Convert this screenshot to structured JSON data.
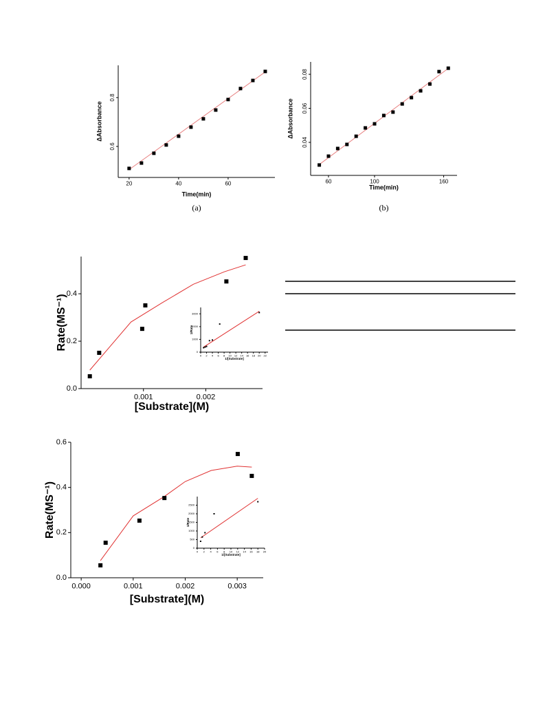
{
  "chart_data": [
    {
      "type": "scatter",
      "x_label": "Time(min)",
      "y_label": "ΔAbsorbance",
      "caption": "(a)",
      "color": "#000000",
      "x": [
        20,
        25,
        30,
        35,
        40,
        45,
        50,
        55,
        60,
        65,
        70,
        75
      ],
      "values": [
        0.51,
        0.532,
        0.572,
        0.606,
        0.642,
        0.679,
        0.713,
        0.749,
        0.792,
        0.837,
        0.87,
        0.907
      ],
      "fit": {
        "x": [
          20,
          75
        ],
        "values": [
          0.505,
          0.905
        ],
        "color": "#e88080"
      },
      "xlim": [
        15.6,
        78.9
      ],
      "xticks": [
        20,
        40,
        60
      ],
      "ylim": [
        0.473,
        0.932
      ],
      "yticks": [
        0.6,
        0.8
      ]
    },
    {
      "type": "scatter",
      "x_label": "Time(min)",
      "y_label": "ΔAbsorbance",
      "caption": "(b)",
      "color": "#000000",
      "x": [
        52,
        60,
        68,
        76,
        84,
        92,
        100,
        108,
        116,
        124,
        132,
        140,
        148,
        156,
        164
      ],
      "values": [
        0.0267,
        0.0319,
        0.0364,
        0.0388,
        0.0436,
        0.0485,
        0.0509,
        0.0558,
        0.0578,
        0.0626,
        0.0663,
        0.0703,
        0.0743,
        0.0816,
        0.0836
      ],
      "fit": {
        "x": [
          52,
          164
        ],
        "values": [
          0.027,
          0.0835
        ],
        "color": "#e88080"
      },
      "xlim": [
        44.5,
        171.6
      ],
      "xticks": [
        60,
        100,
        160
      ],
      "ylim": [
        0.0206,
        0.0873
      ],
      "yticks": [
        0.04,
        0.06,
        0.08
      ]
    },
    {
      "type": "scatter",
      "x_label": "[Substrate](M)",
      "y_label": "Rate(MS⁻¹)",
      "color": "#000000",
      "x": [
        0.00014,
        0.00029,
        0.00098,
        0.00103,
        0.00233,
        0.00264
      ],
      "values": [
        0.052,
        0.151,
        0.252,
        0.351,
        0.452,
        0.551
      ],
      "fit": {
        "x": [
          0.00014,
          0.0008,
          0.0013,
          0.0018,
          0.0023,
          0.00264
        ],
        "values": [
          0.078,
          0.281,
          0.362,
          0.44,
          0.493,
          0.522
        ],
        "color": "#e03030"
      },
      "xlim": [
        0,
        0.00291
      ],
      "xticks": [
        0.001,
        0.002
      ],
      "ylim": [
        0,
        0.557
      ],
      "yticks": [
        {
          "value": 0,
          "label": "0.0"
        },
        0.2,
        0.4
      ],
      "inset": {
        "type": "scatter",
        "x_label": "1/[Substrate]",
        "y_label": "1/Rate",
        "color": "#000000",
        "x": [
          1,
          1.5,
          2,
          3,
          4,
          6.5,
          20
        ],
        "values": [
          350,
          400,
          450,
          900,
          950,
          2200,
          3100
        ],
        "fit": {
          "x": [
            1,
            20
          ],
          "values": [
            400,
            3200
          ],
          "color": "#e03030"
        },
        "xlim": [
          0,
          23
        ],
        "xticks": [
          0,
          2,
          4,
          6,
          8,
          10,
          12,
          14,
          16,
          18,
          20,
          22
        ],
        "ylim": [
          0,
          3500
        ],
        "yticks": [
          0,
          1000,
          2000,
          3000
        ]
      }
    },
    {
      "type": "scatter",
      "x_label": "[Substrate](M)",
      "y_label": "Rate(MS⁻¹)",
      "color": "#000000",
      "x": [
        0.00037,
        0.00047,
        0.00112,
        0.0016,
        0.00301,
        0.00328
      ],
      "values": [
        0.055,
        0.155,
        0.253,
        0.353,
        0.548,
        0.451
      ],
      "fit": {
        "x": [
          0.00037,
          0.001,
          0.0016,
          0.002,
          0.0025,
          0.003,
          0.00328
        ],
        "values": [
          0.076,
          0.274,
          0.36,
          0.426,
          0.475,
          0.494,
          0.49
        ],
        "color": "#e03030"
      },
      "xlim": [
        -0.0002,
        0.0035
      ],
      "xticks": [
        {
          "value": 0,
          "label": "0.000"
        },
        0.001,
        0.002,
        0.003
      ],
      "ylim": [
        0,
        0.6
      ],
      "yticks": [
        {
          "value": 0,
          "label": "0.0"
        },
        0.2,
        0.4,
        0.6
      ],
      "inset": {
        "type": "scatter",
        "x_label": "1/[Substrate]",
        "y_label": "1/Rate",
        "color": "#000000",
        "x": [
          1,
          1.5,
          2.3,
          5,
          18
        ],
        "values": [
          400,
          650,
          900,
          2000,
          2700
        ],
        "fit": {
          "x": [
            1,
            18
          ],
          "values": [
            600,
            2900
          ],
          "color": "#e03030"
        },
        "xlim": [
          0,
          20
        ],
        "xticks": [
          0,
          2,
          4,
          6,
          8,
          10,
          12,
          14,
          16,
          18,
          20
        ],
        "ylim": [
          0,
          3000
        ],
        "yticks": [
          0,
          500,
          1000,
          1500,
          2000,
          2500
        ]
      }
    }
  ]
}
